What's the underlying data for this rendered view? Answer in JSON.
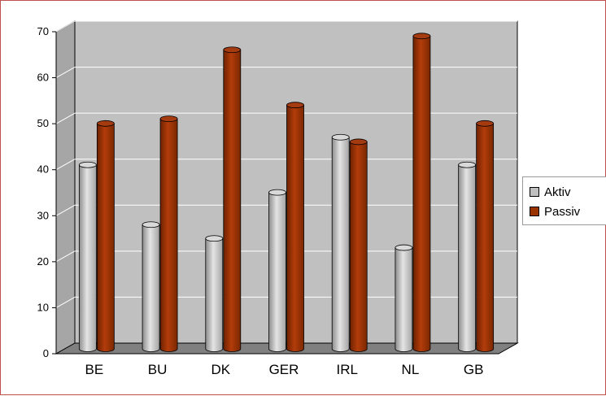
{
  "chart_data": {
    "type": "bar",
    "categories": [
      "BE",
      "BU",
      "DK",
      "GER",
      "IRL",
      "NL",
      "GB"
    ],
    "series": [
      {
        "name": "Aktiv",
        "values": [
          40,
          27,
          24,
          34,
          46,
          22,
          40
        ]
      },
      {
        "name": "Passiv",
        "values": [
          49,
          50,
          65,
          53,
          45,
          68,
          49
        ]
      }
    ],
    "ylim": [
      0,
      70
    ],
    "yticks": [
      0,
      10,
      20,
      30,
      40,
      50,
      60,
      70
    ],
    "grid": true,
    "legend_position": "right",
    "colors": {
      "Aktiv": "#c0c0c0",
      "Passiv": "#993300",
      "wall": "#c0c0c0",
      "floor": "#808080"
    }
  },
  "legend": {
    "items": [
      {
        "label": "Aktiv"
      },
      {
        "label": "Passiv"
      }
    ]
  }
}
